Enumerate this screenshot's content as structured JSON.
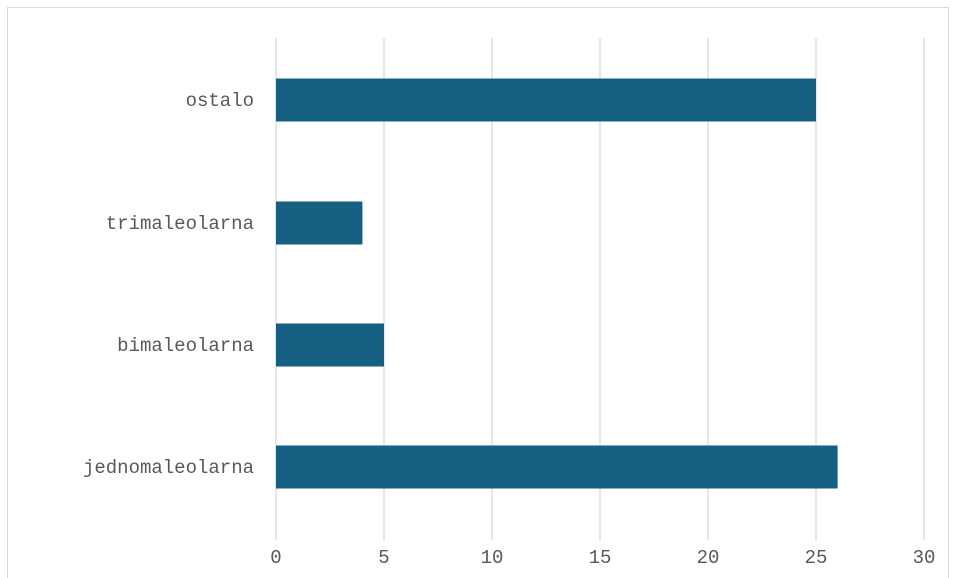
{
  "chart_data": {
    "type": "bar",
    "orientation": "horizontal",
    "title": "",
    "xlabel": "",
    "ylabel": "",
    "categories": [
      "jednomaleolarna",
      "bimaleolarna",
      "trimaleolarna",
      "ostalo"
    ],
    "values": [
      26,
      5,
      4,
      25
    ],
    "xlim": [
      0,
      30
    ],
    "xticks": [
      "0",
      "5",
      "10",
      "15",
      "20",
      "25",
      "30"
    ],
    "grid": "vertical",
    "legend": "none",
    "bar_color": "#156082"
  }
}
